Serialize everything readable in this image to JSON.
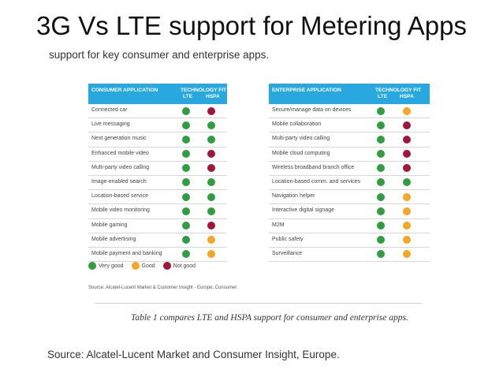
{
  "slide": {
    "title": "3G Vs LTE support  for Metering Apps",
    "intro": "support for key consumer and enterprise apps.",
    "caption": "Table 1 compares LTE and HSPA support for consumer and enterprise apps.",
    "source": "Source: Alcatel-Lucent Market and Consumer Insight, Europe.",
    "table_source": "Source: Alcatel-Lucent Market & Customer Insight - Europe, Consumer"
  },
  "colors": {
    "very_good": "#2e9e3e",
    "good": "#f5a623",
    "not_good": "#a3163a",
    "header": "#29a7df"
  },
  "legend": [
    {
      "label": "Very good",
      "rating": "very_good"
    },
    {
      "label": "Good",
      "rating": "good"
    },
    {
      "label": "Not good",
      "rating": "not_good"
    }
  ],
  "consumer": {
    "header_app": "CONSUMER APPLICATION",
    "header_fit": "TECHNOLOGY FIT",
    "header_lte": "LTE",
    "header_hspa": "HSPA",
    "rows": [
      {
        "app": "Connected car",
        "lte": "very_good",
        "hspa": "not_good"
      },
      {
        "app": "Live messaging",
        "lte": "very_good",
        "hspa": "very_good"
      },
      {
        "app": "Next generation music",
        "lte": "very_good",
        "hspa": "very_good"
      },
      {
        "app": "Enhanced mobile video",
        "lte": "very_good",
        "hspa": "not_good"
      },
      {
        "app": "Multi-party video calling",
        "lte": "very_good",
        "hspa": "not_good"
      },
      {
        "app": "Image-enabled search",
        "lte": "very_good",
        "hspa": "very_good"
      },
      {
        "app": "Location-based service",
        "lte": "very_good",
        "hspa": "very_good"
      },
      {
        "app": "Mobile video monitoring",
        "lte": "very_good",
        "hspa": "very_good"
      },
      {
        "app": "Mobile gaming",
        "lte": "very_good",
        "hspa": "not_good"
      },
      {
        "app": "Mobile advertising",
        "lte": "very_good",
        "hspa": "good"
      },
      {
        "app": "Mobile payment and banking",
        "lte": "very_good",
        "hspa": "good"
      }
    ]
  },
  "enterprise": {
    "header_app": "ENTERPRISE APPLICATION",
    "header_fit": "TECHNOLOGY FIT",
    "header_lte": "LTE",
    "header_hspa": "HSPA",
    "rows": [
      {
        "app": "Secure/manage data on devices",
        "lte": "very_good",
        "hspa": "good"
      },
      {
        "app": "Mobile collaboration",
        "lte": "very_good",
        "hspa": "not_good"
      },
      {
        "app": "Multi-party video calling",
        "lte": "very_good",
        "hspa": "not_good"
      },
      {
        "app": "Mobile cloud computing",
        "lte": "very_good",
        "hspa": "not_good"
      },
      {
        "app": "Wireless broadband branch office",
        "lte": "very_good",
        "hspa": "not_good"
      },
      {
        "app": "Location-based comm. and services",
        "lte": "very_good",
        "hspa": "very_good"
      },
      {
        "app": "Navigation helper",
        "lte": "very_good",
        "hspa": "good"
      },
      {
        "app": "Interactive digital signage",
        "lte": "very_good",
        "hspa": "good"
      },
      {
        "app": "M2M",
        "lte": "very_good",
        "hspa": "good"
      },
      {
        "app": "Public safety",
        "lte": "very_good",
        "hspa": "good"
      },
      {
        "app": "Surveillance",
        "lte": "very_good",
        "hspa": "good"
      }
    ]
  }
}
